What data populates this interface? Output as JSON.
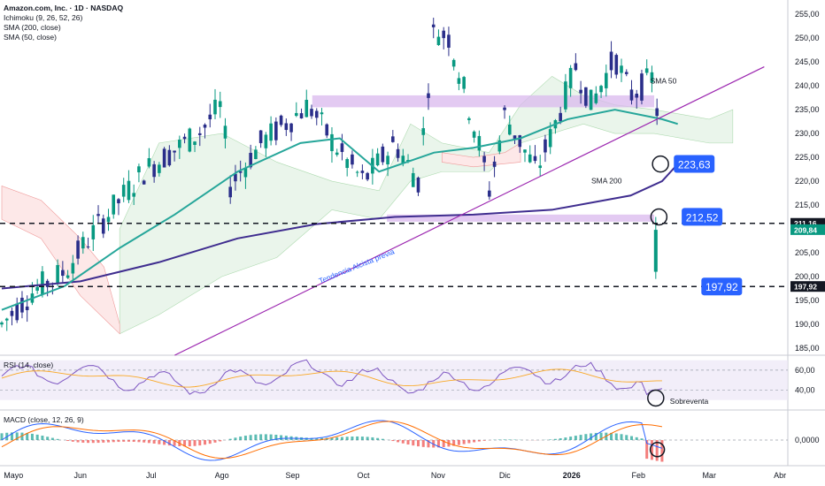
{
  "legend": {
    "title": "Amazon.com, Inc. · 1D · NASDAQ",
    "indicators": [
      "Ichimoku (9, 26, 52, 26)",
      "SMA (200, close)",
      "SMA (50, close)"
    ]
  },
  "rsi_label": "RSI (14, close)",
  "macd_label": "MACD (close, 12, 26, 9)",
  "colors": {
    "up": "#089981",
    "down": "#2a2e8a",
    "sma50": "#26a69a",
    "sma200": "#3f2d8f",
    "trend": "#9c27b0",
    "zone": "#d9b8ee",
    "badge": "#2962ff",
    "cloud_up": "#e8f5e9",
    "cloud_down": "#fde8e8"
  },
  "chart_data": {
    "type": "candlestick",
    "price_axis": {
      "ticks": [
        185,
        190,
        195,
        200,
        205,
        210,
        215,
        220,
        225,
        230,
        235,
        240,
        245,
        250,
        255
      ],
      "tick_labels": [
        "185,00",
        "190,00",
        "195,00",
        "200,00",
        "205,00",
        "210,00",
        "215,00",
        "220,00",
        "225,00",
        "230,00",
        "235,00",
        "240,00",
        "245,00",
        "250,00",
        "255,00"
      ],
      "ylim": [
        183.5,
        258
      ]
    },
    "time_axis": [
      "Mayo",
      "Jun",
      "Jul",
      "Ago",
      "Sep",
      "Oct",
      "Nov",
      "Dic",
      "2026",
      "Feb",
      "Mar",
      "Abr"
    ],
    "price_labels": [
      {
        "value": 211.16,
        "text": "211,16",
        "style": "dark"
      },
      {
        "value": 209.84,
        "text": "209,84",
        "style": "green"
      },
      {
        "value": 197.92,
        "text": "197,92",
        "style": "dark"
      }
    ],
    "horizontal_levels": [
      211.16,
      197.92
    ],
    "badges": [
      {
        "value": 223.63,
        "text": "223,63"
      },
      {
        "value": 212.52,
        "text": "212,52"
      },
      {
        "value": 197.92,
        "text": "197,92"
      }
    ],
    "annotations": [
      "SMA 50",
      "SMA 200",
      "Tendencia Alcista previa",
      "Sobreventa"
    ],
    "rsi_ticks": [
      {
        "value": 60,
        "text": "60,00"
      },
      {
        "value": 40,
        "text": "40,00"
      }
    ],
    "macd_ticks": [
      {
        "value": 0,
        "text": "0,0000"
      }
    ],
    "series": [
      {
        "name": "SMA (200, close)",
        "points": [
          [
            0,
            197.5
          ],
          [
            0.1,
            199
          ],
          [
            0.2,
            203
          ],
          [
            0.3,
            208
          ],
          [
            0.4,
            211
          ],
          [
            0.5,
            212.5
          ],
          [
            0.6,
            213
          ],
          [
            0.7,
            214
          ],
          [
            0.8,
            217
          ],
          [
            0.84,
            220
          ],
          [
            0.86,
            223.6
          ]
        ]
      },
      {
        "name": "SMA (50, close)",
        "points": [
          [
            0,
            193
          ],
          [
            0.08,
            198
          ],
          [
            0.15,
            206
          ],
          [
            0.22,
            213
          ],
          [
            0.3,
            222
          ],
          [
            0.38,
            228
          ],
          [
            0.43,
            229
          ],
          [
            0.48,
            222
          ],
          [
            0.55,
            226
          ],
          [
            0.6,
            227
          ],
          [
            0.66,
            229
          ],
          [
            0.72,
            233
          ],
          [
            0.78,
            235
          ],
          [
            0.84,
            233
          ],
          [
            0.86,
            232
          ]
        ]
      }
    ]
  }
}
